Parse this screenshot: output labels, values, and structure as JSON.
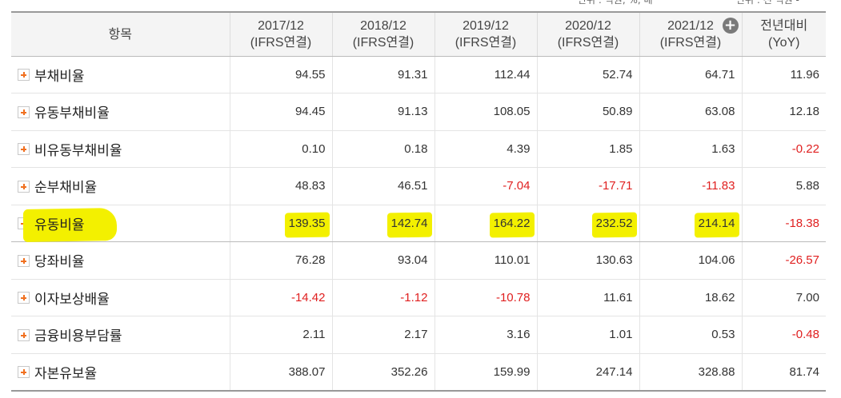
{
  "unit_note": {
    "left": "단위 : 억원, %, 배",
    "right": "단위 : 전 억원 -"
  },
  "table": {
    "header": {
      "item_label": "항목",
      "columns": [
        {
          "year": "2017/12",
          "basis": "(IFRS연결)"
        },
        {
          "year": "2018/12",
          "basis": "(IFRS연결)"
        },
        {
          "year": "2019/12",
          "basis": "(IFRS연결)"
        },
        {
          "year": "2020/12",
          "basis": "(IFRS연결)"
        },
        {
          "year": "2021/12",
          "basis": "(IFRS연결)"
        }
      ],
      "yoy_label": "전년대비",
      "yoy_sub": "(YoY)",
      "more_icon": "plus-circle-icon"
    },
    "rows": [
      {
        "label": "부채비율",
        "values": [
          "94.55",
          "91.31",
          "112.44",
          "52.74",
          "64.71"
        ],
        "yoy": "11.96"
      },
      {
        "label": "유동부채비율",
        "values": [
          "94.45",
          "91.13",
          "108.05",
          "50.89",
          "63.08"
        ],
        "yoy": "12.18"
      },
      {
        "label": "비유동부채비율",
        "values": [
          "0.10",
          "0.18",
          "4.39",
          "1.85",
          "1.63"
        ],
        "yoy": "-0.22"
      },
      {
        "label": "순부채비율",
        "values": [
          "48.83",
          "46.51",
          "-7.04",
          "-17.71",
          "-11.83"
        ],
        "yoy": "5.88"
      },
      {
        "label": "유동비율",
        "values": [
          "139.35",
          "142.74",
          "164.22",
          "232.52",
          "214.14"
        ],
        "yoy": "-18.38",
        "highlighted": true
      },
      {
        "label": "당좌비율",
        "values": [
          "76.28",
          "93.04",
          "110.01",
          "130.63",
          "104.06"
        ],
        "yoy": "-26.57"
      },
      {
        "label": "이자보상배율",
        "values": [
          "-14.42",
          "-1.12",
          "-10.78",
          "11.61",
          "18.62"
        ],
        "yoy": "7.00"
      },
      {
        "label": "금융비용부담률",
        "values": [
          "2.11",
          "2.17",
          "3.16",
          "1.01",
          "0.53"
        ],
        "yoy": "-0.48"
      },
      {
        "label": "자본유보율",
        "values": [
          "388.07",
          "352.26",
          "159.99",
          "247.14",
          "328.88"
        ],
        "yoy": "81.74"
      }
    ]
  },
  "colors": {
    "negative": "#e02020",
    "highlight": "#f3f000",
    "expand_icon": "#f07020"
  }
}
